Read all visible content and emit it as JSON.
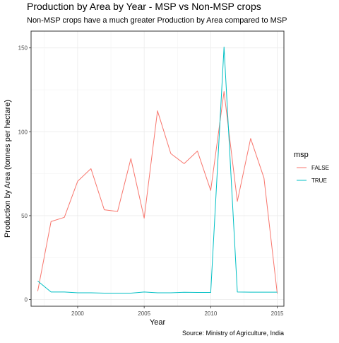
{
  "chart_data": {
    "type": "line",
    "title": "Production by Area by Year - MSP vs Non-MSP crops",
    "subtitle": "Non-MSP crops have a much greater Production by Area compared to MSP",
    "xlabel": "Year",
    "ylabel": "Production by Area (tonnes per hectare)",
    "caption": "Source: Ministry of Agriculture, India",
    "xlim": [
      1996.5,
      2015.5
    ],
    "ylim": [
      -4,
      160
    ],
    "x_ticks": [
      2000,
      2005,
      2010,
      2015
    ],
    "y_ticks": [
      0,
      50,
      100,
      150
    ],
    "grid": true,
    "legend": {
      "title": "msp",
      "position": "right",
      "entries": [
        "FALSE",
        "TRUE"
      ]
    },
    "series": [
      {
        "name": "FALSE",
        "color": "#F8766D",
        "points": [
          [
            1997,
            5
          ],
          [
            1998,
            46.5
          ],
          [
            1999,
            49
          ],
          [
            2000,
            70.5
          ],
          [
            2001,
            78
          ],
          [
            2002,
            53.5
          ],
          [
            2003,
            52.5
          ],
          [
            2004,
            84
          ],
          [
            2005,
            48.5
          ],
          [
            2006,
            112.5
          ],
          [
            2007,
            87
          ],
          [
            2008,
            81
          ],
          [
            2009,
            88.5
          ],
          [
            2010,
            65
          ],
          [
            2011,
            124
          ],
          [
            2012,
            58.5
          ],
          [
            2013,
            96
          ],
          [
            2014,
            72.5
          ],
          [
            2015,
            3.5
          ]
        ]
      },
      {
        "name": "TRUE",
        "color": "#00BFC4",
        "points": [
          [
            1997,
            11
          ],
          [
            1998,
            4.5
          ],
          [
            1999,
            4.5
          ],
          [
            2000,
            4
          ],
          [
            2001,
            4
          ],
          [
            2002,
            3.8
          ],
          [
            2003,
            3.8
          ],
          [
            2004,
            3.8
          ],
          [
            2005,
            4.5
          ],
          [
            2006,
            4
          ],
          [
            2007,
            4
          ],
          [
            2008,
            4.3
          ],
          [
            2009,
            4.2
          ],
          [
            2010,
            4.2
          ],
          [
            2011,
            150.5
          ],
          [
            2012,
            4.5
          ],
          [
            2013,
            4.4
          ],
          [
            2014,
            4.4
          ],
          [
            2015,
            4.4
          ]
        ]
      }
    ]
  }
}
